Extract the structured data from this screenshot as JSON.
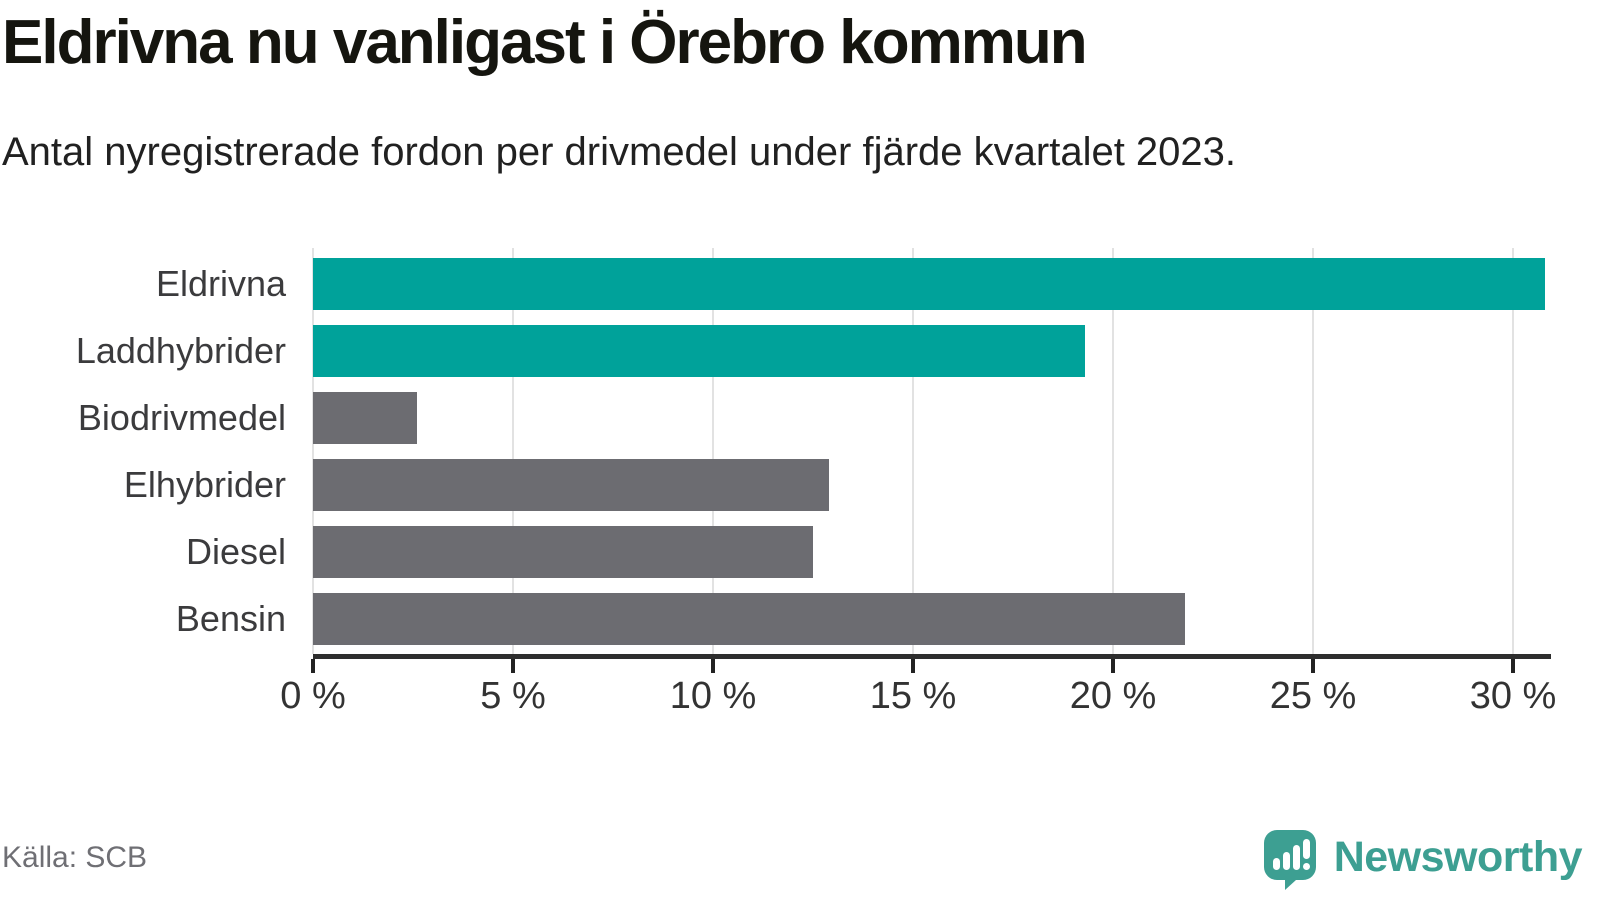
{
  "header": {
    "title": "Eldrivna nu vanligast i Örebro kommun",
    "subtitle": "Antal nyregistrerade fordon per drivmedel under fjärde kvartalet 2023."
  },
  "footer": {
    "source": "Källa: SCB",
    "brand_name": "Newsworthy"
  },
  "colors": {
    "highlight_bar": "#00a29a",
    "default_bar": "#6c6c71",
    "gridline": "#e2e2e2",
    "axis": "#2e2e2e",
    "brand_teal": "#3d9f92"
  },
  "chart_data": {
    "type": "bar",
    "orientation": "horizontal",
    "title": "Eldrivna nu vanligast i Örebro kommun",
    "subtitle": "Antal nyregistrerade fordon per drivmedel under fjärde kvartalet 2023.",
    "categories": [
      "Eldrivna",
      "Laddhybrider",
      "Biodrivmedel",
      "Elhybrider",
      "Diesel",
      "Bensin"
    ],
    "values": [
      30.8,
      19.3,
      2.6,
      12.9,
      12.5,
      21.8
    ],
    "unit": "%",
    "bar_colors": [
      "#00a29a",
      "#00a29a",
      "#6c6c71",
      "#6c6c71",
      "#6c6c71",
      "#6c6c71"
    ],
    "highlighted_categories": [
      "Eldrivna",
      "Laddhybrider"
    ],
    "xlim": [
      0,
      30.925
    ],
    "xticks": [
      0,
      5,
      10,
      15,
      20,
      25,
      30
    ],
    "xtick_format": "{v} %",
    "grid": true,
    "legend": false,
    "source": "Källa: SCB"
  }
}
